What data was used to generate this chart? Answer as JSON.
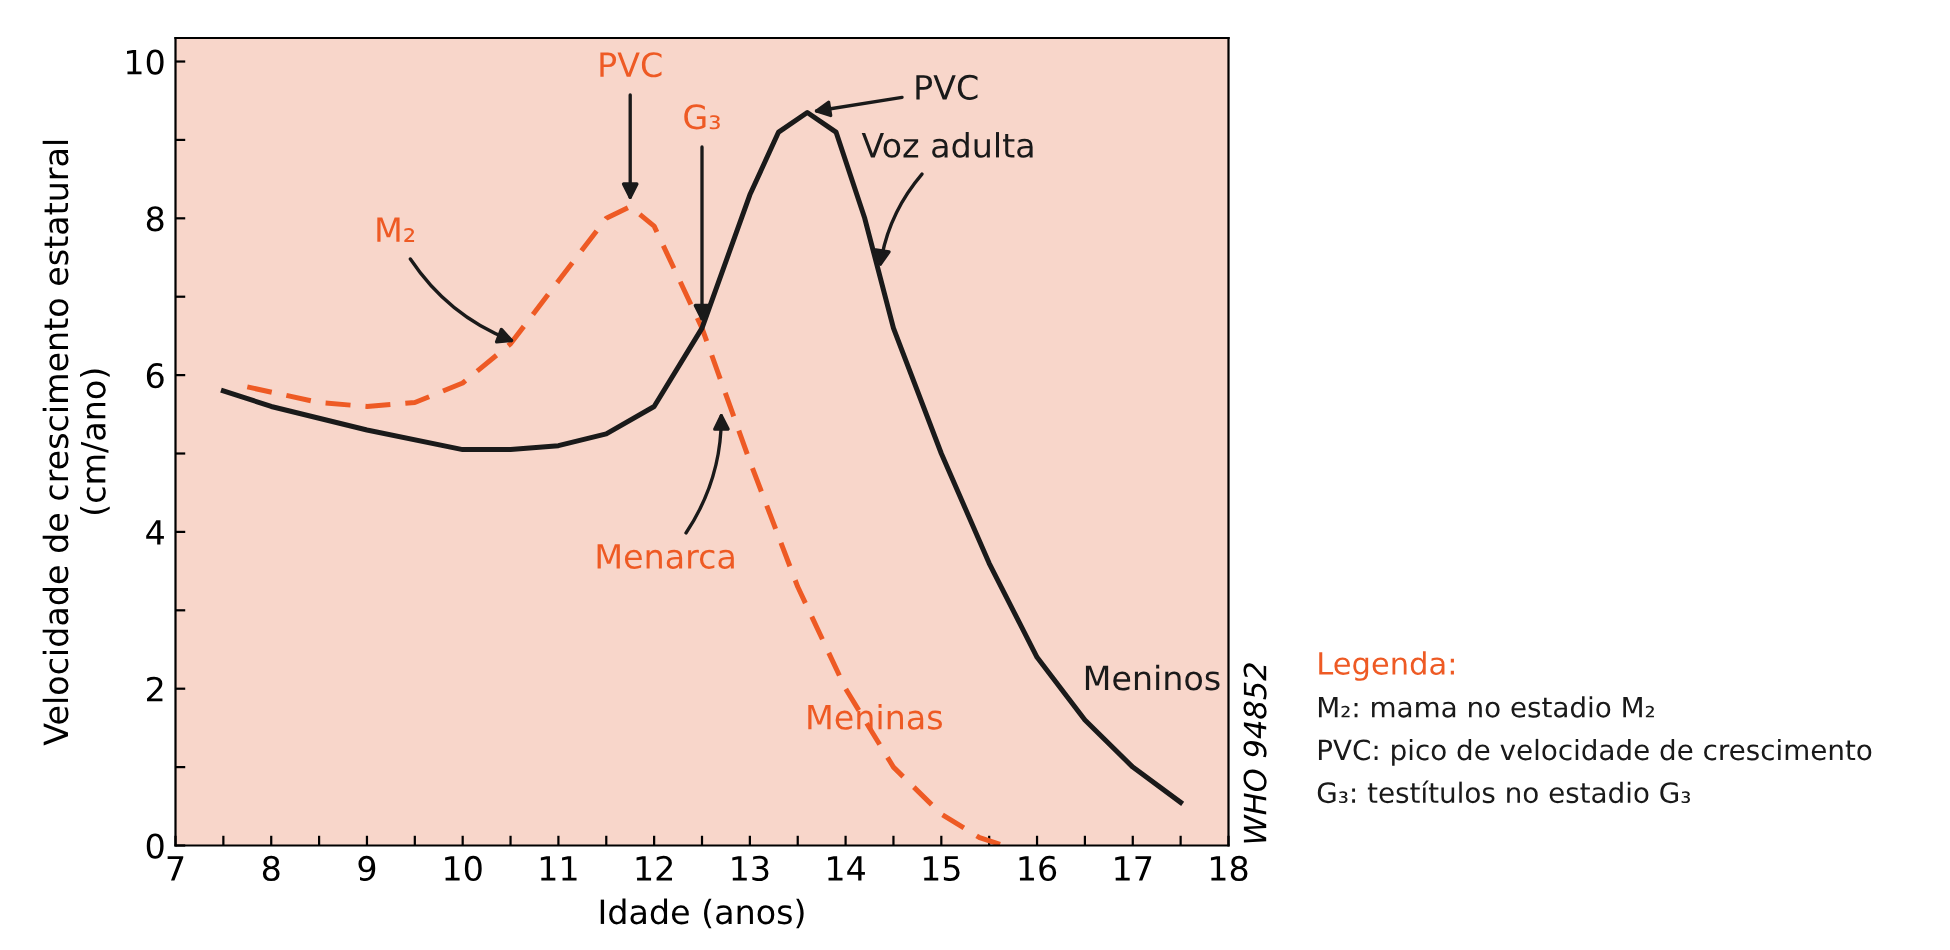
{
  "chart_data": {
    "type": "line",
    "xlabel": "Idade (anos)",
    "ylabel": "Velocidade de crescimento estatural\n(cm/ano)",
    "xlim": [
      7,
      18
    ],
    "ylim": [
      0,
      10.3
    ],
    "xticks": [
      7,
      {
        "value": 7.5,
        "label": null
      },
      8,
      {
        "value": 8.5,
        "label": null
      },
      9,
      {
        "value": 9.5,
        "label": null
      },
      10,
      {
        "value": 10.5,
        "label": null
      },
      11,
      {
        "value": 11.5,
        "label": null
      },
      12,
      {
        "value": 12.5,
        "label": null
      },
      13,
      {
        "value": 13.5,
        "label": null
      },
      14,
      {
        "value": 14.5,
        "label": null
      },
      15,
      {
        "value": 15.5,
        "label": null
      },
      16,
      {
        "value": 16.5,
        "label": null
      },
      17,
      {
        "value": 17.5,
        "label": null
      },
      18
    ],
    "yticks": [
      0,
      {
        "value": 1,
        "label": null
      },
      2,
      {
        "value": 3,
        "label": null
      },
      4,
      {
        "value": 5,
        "label": null
      },
      6,
      {
        "value": 7,
        "label": null
      },
      8,
      {
        "value": 9,
        "label": null
      },
      10
    ],
    "grid": false,
    "legend": false,
    "marker": "none",
    "series": [
      {
        "name": "Meninas",
        "color": "#ee5a24",
        "line_style": "dashed",
        "x": [
          7.75,
          8.5,
          9,
          9.5,
          10,
          10.5,
          11,
          11.5,
          11.75,
          12,
          12.5,
          13,
          13.5,
          14,
          14.5,
          15,
          15.4,
          15.65
        ],
        "values": [
          5.85,
          5.65,
          5.6,
          5.65,
          5.9,
          6.4,
          7.2,
          8.0,
          8.15,
          7.9,
          6.6,
          4.9,
          3.3,
          2.0,
          1.0,
          0.4,
          0.1,
          0.0
        ]
      },
      {
        "name": "Meninos",
        "color": "#1a1a1a",
        "line_style": "solid",
        "x": [
          7.5,
          8,
          9,
          10,
          10.5,
          11,
          11.5,
          12,
          12.5,
          13,
          13.3,
          13.6,
          13.9,
          14.2,
          14.5,
          15,
          15.5,
          16,
          16.5,
          17,
          17.5
        ],
        "values": [
          5.8,
          5.6,
          5.3,
          5.05,
          5.05,
          5.1,
          5.25,
          5.6,
          6.6,
          8.3,
          9.1,
          9.35,
          9.1,
          8.0,
          6.6,
          5.0,
          3.6,
          2.4,
          1.6,
          1.0,
          0.55
        ]
      }
    ],
    "annotations": [
      {
        "text": "M₂",
        "x": 10.6,
        "y": 6.4
      },
      {
        "text": "PVC",
        "x": 11.75,
        "y": 8.15
      },
      {
        "text": "G₃",
        "x": 12.5,
        "y": 6.6
      },
      {
        "text": "Menarca",
        "x": 12.7,
        "y": 5.6
      },
      {
        "text": "PVC",
        "x": 13.6,
        "y": 9.35
      },
      {
        "text": "Voz adulta",
        "x": 14.35,
        "y": 7.3
      },
      "WHO 94852",
      "Legenda:",
      "M₂: mama no estadio M₂",
      "PVC: pico de velocidade de crescimento",
      "G₃: testítulos no estadio G₃"
    ]
  }
}
